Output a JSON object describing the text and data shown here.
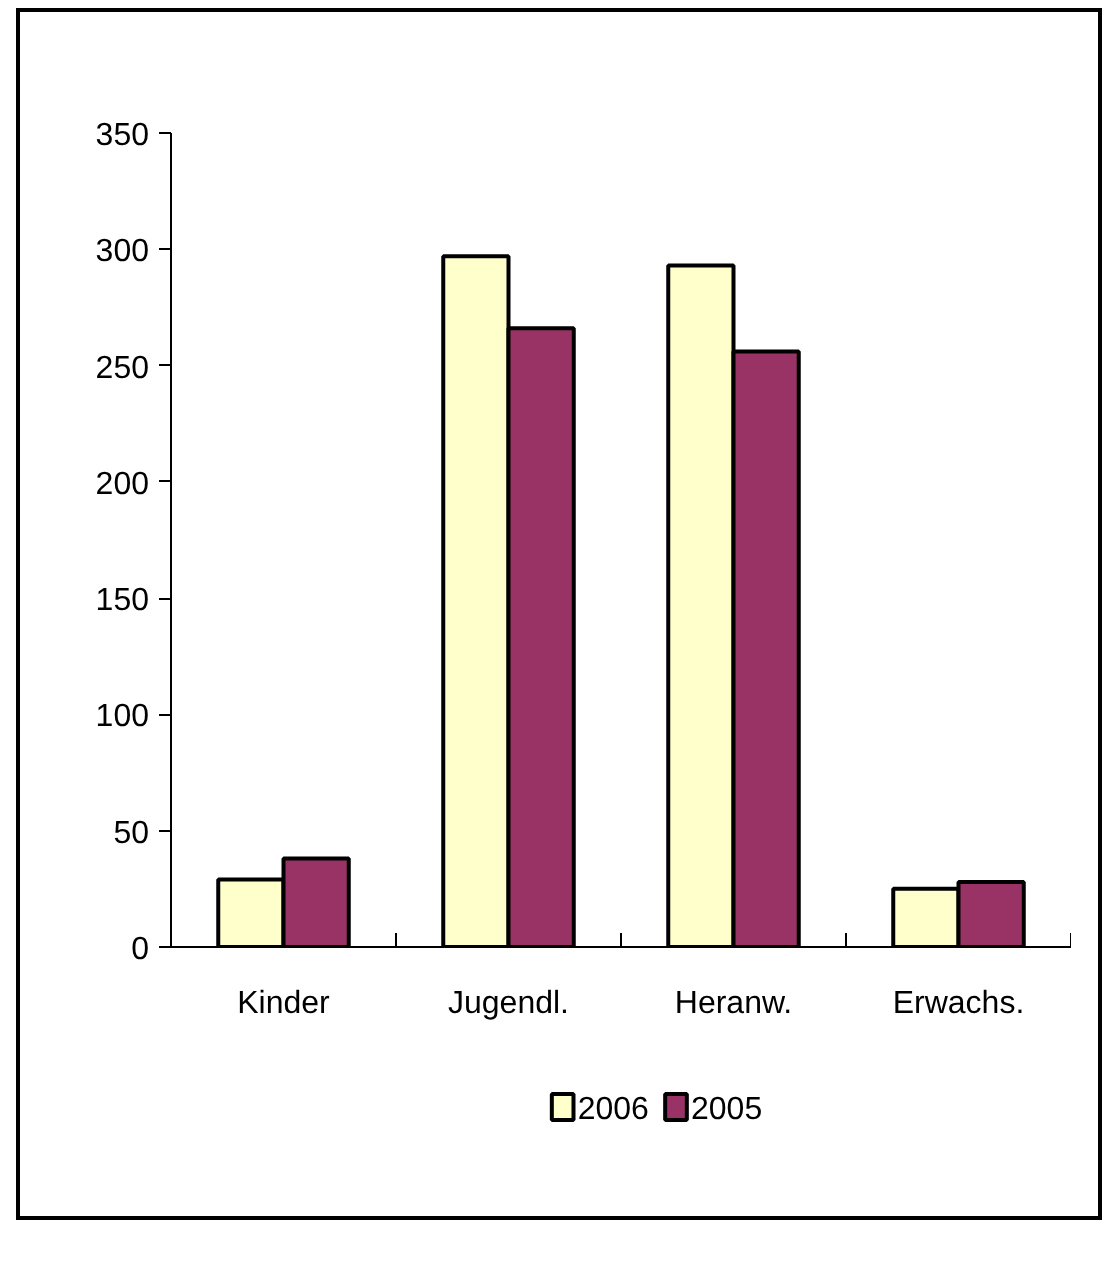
{
  "chart_data": {
    "type": "bar",
    "categories": [
      "Kinder",
      "Jugendl.",
      "Heranw.",
      "Erwachs."
    ],
    "series": [
      {
        "name": "2006",
        "color": "#ffffcc",
        "values": [
          29,
          297,
          293,
          25
        ]
      },
      {
        "name": "2005",
        "color": "#993366",
        "values": [
          38,
          266,
          256,
          28
        ]
      }
    ],
    "ylim": [
      0,
      350
    ],
    "yticks": [
      0,
      50,
      100,
      150,
      200,
      250,
      300,
      350
    ],
    "grid": false,
    "legend": "bottom"
  }
}
